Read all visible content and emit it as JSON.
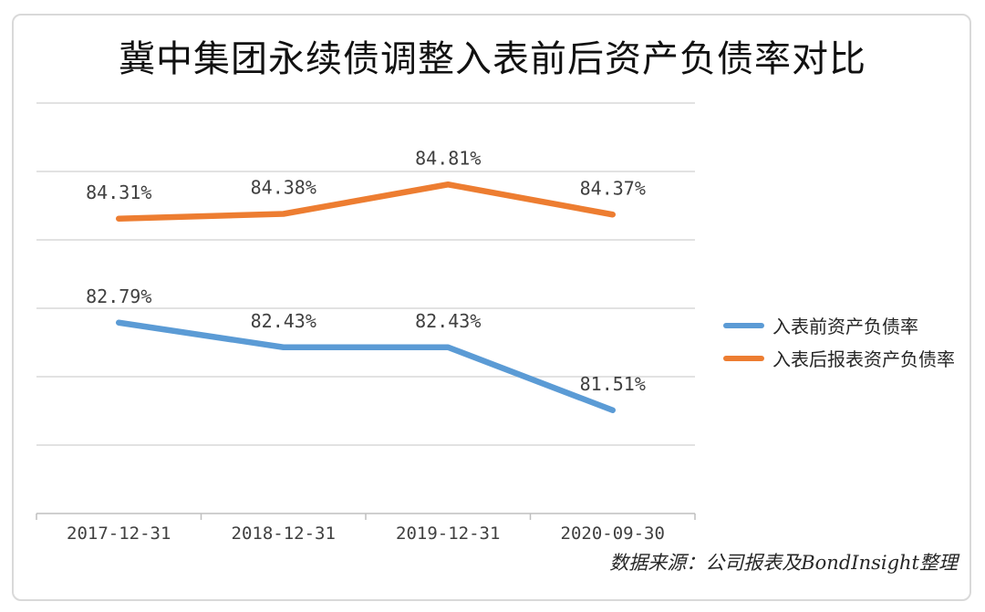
{
  "chart_data": {
    "type": "line",
    "title": "冀中集团永续债调整入表前后资产负债率对比",
    "categories": [
      "2017-12-31",
      "2018-12-31",
      "2019-12-31",
      "2020-09-30"
    ],
    "series": [
      {
        "name": "入表前资产负债率",
        "color": "#5B9BD5",
        "values": [
          82.79,
          82.43,
          82.43,
          81.51
        ],
        "labels": [
          "82.79%",
          "82.43%",
          "82.43%",
          "81.51%"
        ]
      },
      {
        "name": "入表后报表资产负债率",
        "color": "#ED7D31",
        "values": [
          84.31,
          84.38,
          84.81,
          84.37
        ],
        "labels": [
          "84.31%",
          "84.38%",
          "84.81%",
          "84.37%"
        ]
      }
    ],
    "ylim": [
      80,
      86
    ],
    "gridline_values": [
      81,
      82,
      83,
      84,
      85,
      86
    ],
    "grid": true,
    "y_axis_labels_visible": false,
    "legend_position": "right",
    "source_note": "数据来源：公司报表及BondInsight整理"
  },
  "colors": {
    "gridline": "#d9d9d9",
    "axis": "#bfbfbf",
    "tick": "#bfbfbf",
    "label_text": "#404040",
    "frame_border": "#d9d9d9",
    "background": "#ffffff"
  }
}
